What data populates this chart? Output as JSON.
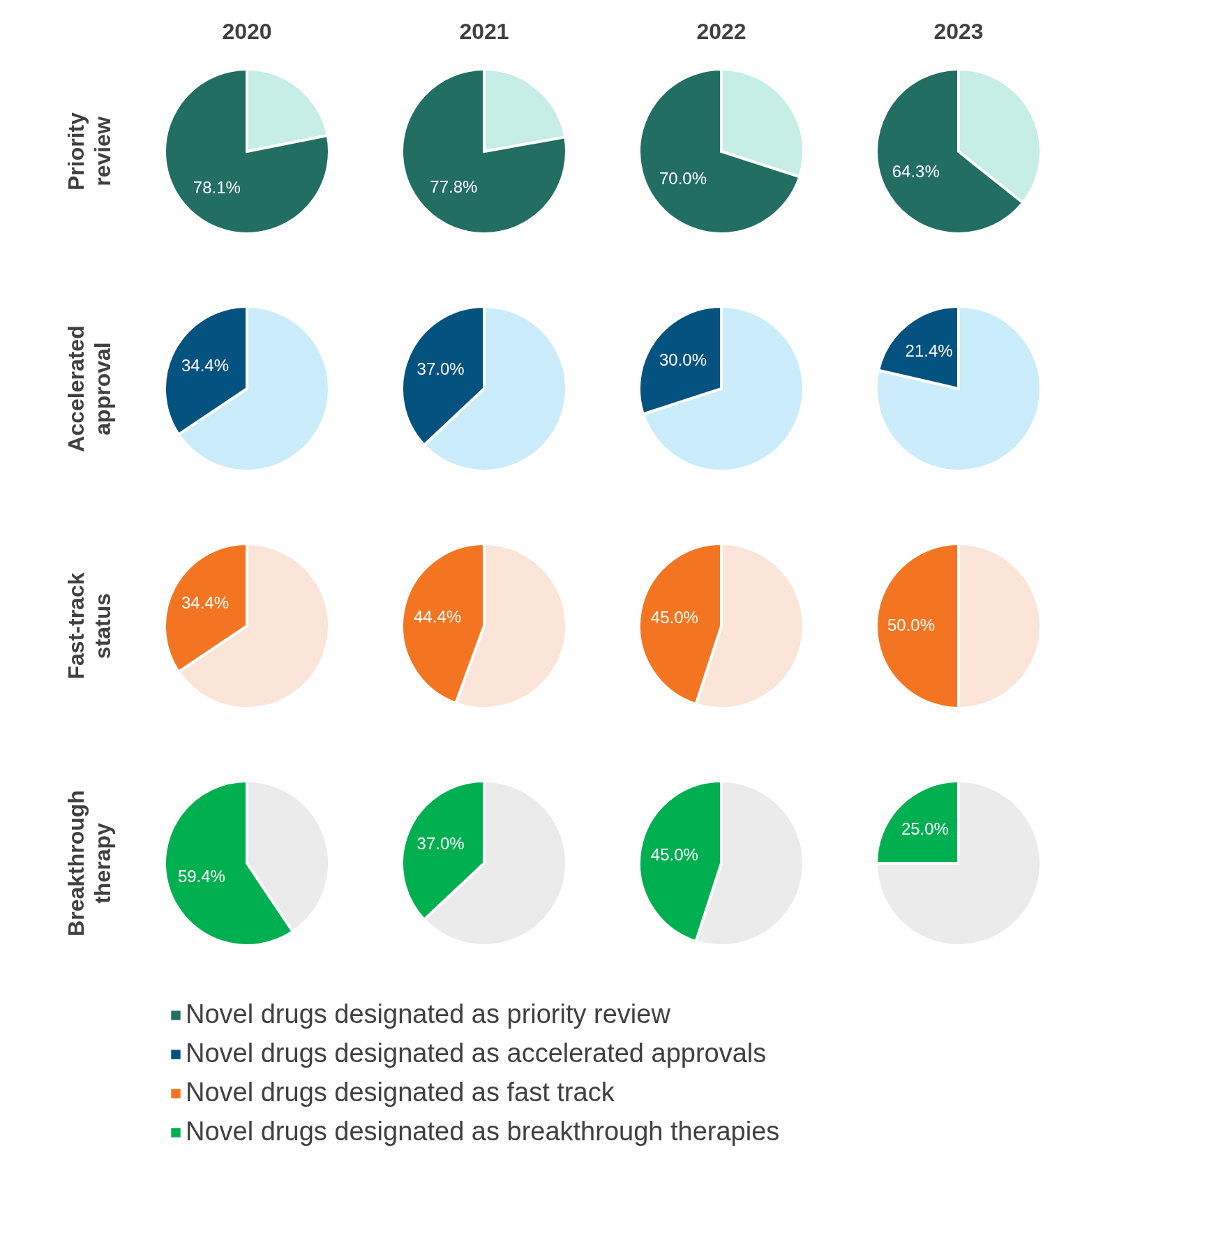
{
  "chart_data": [
    {
      "type": "pie",
      "title": "2020",
      "ylabel": "Priority review",
      "categories": [
        null,
        "Novel drugs designated as priority review"
      ],
      "legend": "bottom",
      "values": [
        21.9,
        78.1
      ],
      "colors": [
        "#c6ede6",
        "#226e63"
      ],
      "value_labels": [
        null,
        "78.1%"
      ]
    },
    {
      "type": "pie",
      "title": "2021",
      "categories": [
        null,
        null
      ],
      "values": [
        22.2,
        77.8
      ],
      "colors": [
        "#c6ede6",
        "#226e63"
      ],
      "value_labels": [
        null,
        "77.8%"
      ]
    },
    {
      "type": "pie",
      "title": "2022",
      "categories": [
        null,
        null
      ],
      "values": [
        30.0,
        70.0
      ],
      "colors": [
        "#c6ede6",
        "#226e63"
      ],
      "value_labels": [
        null,
        "70.0%"
      ]
    },
    {
      "type": "pie",
      "title": "2023",
      "categories": [
        null,
        null
      ],
      "values": [
        35.7,
        64.3
      ],
      "colors": [
        "#c6ede6",
        "#226e63"
      ],
      "value_labels": [
        null,
        "64.3%"
      ]
    },
    {
      "type": "pie",
      "ylabel": "Accelerated approval",
      "categories": [
        null,
        "Novel drugs designated as accelerated approvals"
      ],
      "legend": "bottom",
      "values": [
        65.6,
        34.4
      ],
      "colors": [
        "#cbecfa",
        "#04527f"
      ],
      "value_labels": [
        null,
        "34.4%"
      ]
    },
    {
      "type": "pie",
      "categories": [
        null,
        null
      ],
      "values": [
        63.0,
        37.0
      ],
      "colors": [
        "#cbecfa",
        "#04527f"
      ],
      "value_labels": [
        null,
        "37.0%"
      ]
    },
    {
      "type": "pie",
      "categories": [
        null,
        null
      ],
      "values": [
        70.0,
        30.0
      ],
      "colors": [
        "#cbecfa",
        "#04527f"
      ],
      "value_labels": [
        null,
        "30.0%"
      ]
    },
    {
      "type": "pie",
      "categories": [
        null,
        null
      ],
      "values": [
        78.6,
        21.4
      ],
      "colors": [
        "#cbecfa",
        "#04527f"
      ],
      "value_labels": [
        null,
        "21.4%"
      ]
    },
    {
      "type": "pie",
      "ylabel": "Fast-track status",
      "categories": [
        null,
        "Novel drugs designated as fast track"
      ],
      "legend": "bottom",
      "values": [
        65.6,
        34.4
      ],
      "colors": [
        "#fbe5d8",
        "#f47521"
      ],
      "value_labels": [
        null,
        "34.4%"
      ]
    },
    {
      "type": "pie",
      "categories": [
        null,
        null
      ],
      "values": [
        55.6,
        44.4
      ],
      "colors": [
        "#fbe5d8",
        "#f47521"
      ],
      "value_labels": [
        null,
        "44.4%"
      ]
    },
    {
      "type": "pie",
      "categories": [
        null,
        null
      ],
      "values": [
        55.0,
        45.0
      ],
      "colors": [
        "#fbe5d8",
        "#f47521"
      ],
      "value_labels": [
        null,
        "45.0%"
      ]
    },
    {
      "type": "pie",
      "categories": [
        null,
        null
      ],
      "values": [
        50.0,
        50.0
      ],
      "colors": [
        "#fbe5d8",
        "#f47521"
      ],
      "value_labels": [
        null,
        "50.0%"
      ]
    },
    {
      "type": "pie",
      "ylabel": "Breakthrough therapy",
      "categories": [
        null,
        "Novel drugs designated as breakthrough therapies"
      ],
      "legend": "bottom",
      "values": [
        40.6,
        59.4
      ],
      "colors": [
        "#ebebeb",
        "#00b050"
      ],
      "value_labels": [
        null,
        "59.4%"
      ]
    },
    {
      "type": "pie",
      "categories": [
        null,
        null
      ],
      "values": [
        63.0,
        37.0
      ],
      "colors": [
        "#ebebeb",
        "#00b050"
      ],
      "value_labels": [
        null,
        "37.0%"
      ]
    },
    {
      "type": "pie",
      "categories": [
        null,
        null
      ],
      "values": [
        55.0,
        45.0
      ],
      "colors": [
        "#ebebeb",
        "#00b050"
      ],
      "value_labels": [
        null,
        "45.0%"
      ]
    },
    {
      "type": "pie",
      "categories": [
        null,
        null
      ],
      "values": [
        75.0,
        25.0
      ],
      "colors": [
        "#ebebeb",
        "#00b050"
      ],
      "value_labels": [
        null,
        "25.0%"
      ]
    }
  ]
}
